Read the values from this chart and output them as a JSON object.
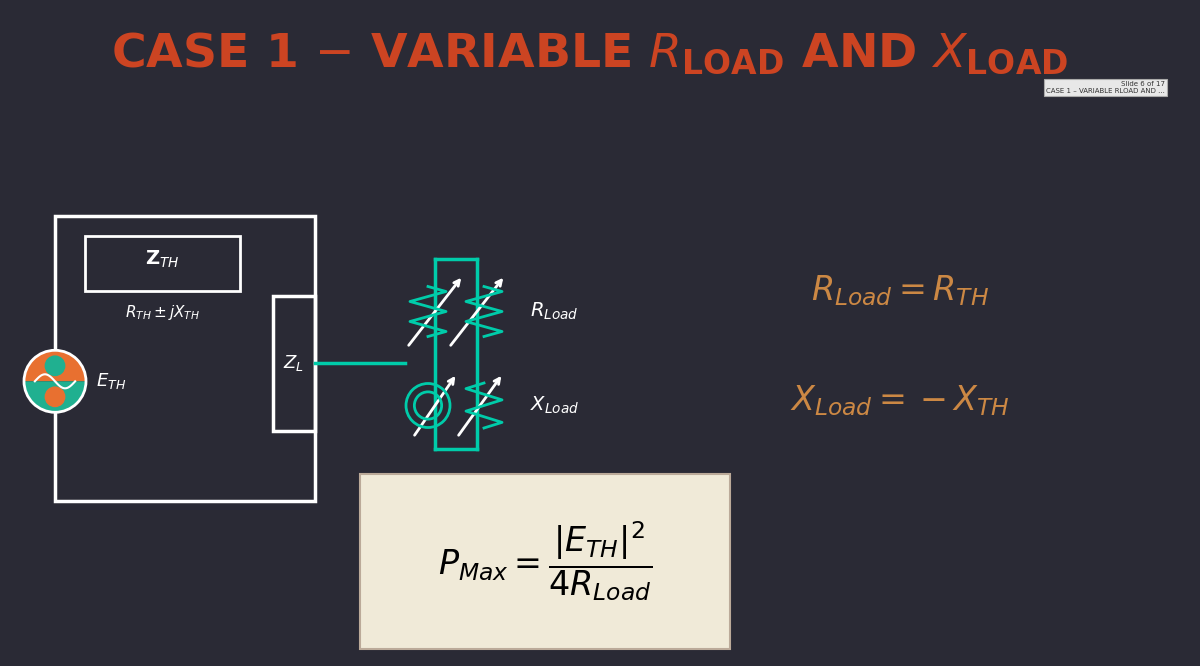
{
  "bg_color": "#2a2a35",
  "title_color": "#cc4422",
  "circuit_color": "white",
  "teal_color": "#00ccaa",
  "formula_bg": "#f0ead8",
  "formula_color": "black",
  "eq_color": "#cc8844",
  "source_orange": "#e87030",
  "source_teal": "#20b090"
}
